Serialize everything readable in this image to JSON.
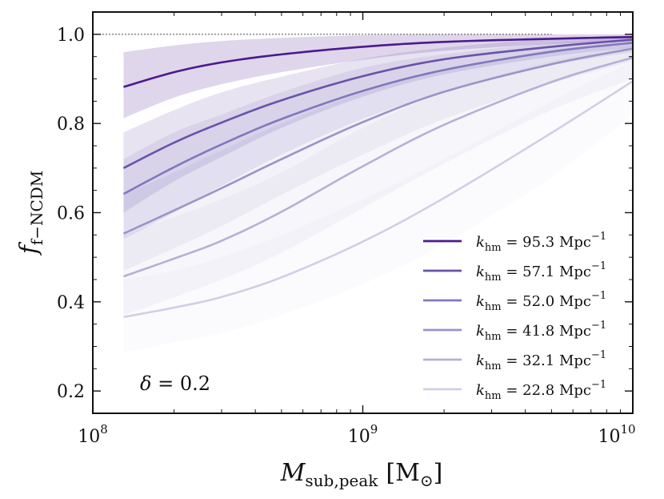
{
  "chart_data": {
    "type": "line",
    "x_scale": "log",
    "xlim": [
      100000000,
      10000000000
    ],
    "ylim": [
      0.15,
      1.05
    ],
    "xlabel": {
      "main": "M",
      "sub": "sub,peak",
      "unit": "[M",
      "unit_sub": "⊙",
      "unit_close": "]"
    },
    "ylabel": {
      "main": "f",
      "sub": "f−NCDM"
    },
    "x_ticks": [
      {
        "value": 100000000,
        "base": "10",
        "exp": "8"
      },
      {
        "value": 1000000000,
        "base": "10",
        "exp": "9"
      },
      {
        "value": 10000000000,
        "base": "10",
        "exp": "10"
      }
    ],
    "y_ticks": [
      {
        "value": 0.2,
        "label": "0.2"
      },
      {
        "value": 0.4,
        "label": "0.4"
      },
      {
        "value": 0.6,
        "label": "0.6"
      },
      {
        "value": 0.8,
        "label": "0.8"
      },
      {
        "value": 1.0,
        "label": "1.0"
      }
    ],
    "reference_line": {
      "y": 1.0,
      "style": "dashed"
    },
    "annotation": {
      "symbol": "δ",
      "text": " = 0.2"
    },
    "legend": {
      "position": "lower-right",
      "prefix": "k",
      "prefix_sub": "hm",
      "eq": " = ",
      "unit": " Mpc",
      "unit_exp": "−1"
    },
    "series": [
      {
        "name": "95.3",
        "color": "#4b1a8f",
        "band_opacity": 0.18,
        "x": [
          130000000,
          200000000,
          300000000,
          500000000,
          1000000000,
          2000000000,
          5000000000,
          10000000000
        ],
        "y": [
          0.882,
          0.915,
          0.937,
          0.955,
          0.972,
          0.983,
          0.99,
          0.994
        ],
        "y_low": [
          0.812,
          0.858,
          0.888,
          0.915,
          0.943,
          0.963,
          0.978,
          0.985
        ],
        "y_high": [
          0.96,
          0.975,
          0.985,
          0.992,
          0.998,
          1.0,
          1.0,
          1.0
        ]
      },
      {
        "name": "57.1",
        "color": "#6a52a9",
        "band_opacity": 0.16,
        "x": [
          130000000,
          200000000,
          300000000,
          500000000,
          1000000000,
          2000000000,
          5000000000,
          10000000000
        ],
        "y": [
          0.7,
          0.757,
          0.802,
          0.852,
          0.906,
          0.944,
          0.972,
          0.988
        ],
        "y_low": [
          0.6,
          0.67,
          0.725,
          0.79,
          0.86,
          0.91,
          0.95,
          0.97
        ],
        "y_high": [
          0.78,
          0.83,
          0.87,
          0.905,
          0.945,
          0.97,
          0.99,
          0.998
        ]
      },
      {
        "name": "52.0",
        "color": "#8377bd",
        "band_opacity": 0.14,
        "x": [
          130000000,
          200000000,
          300000000,
          500000000,
          1000000000,
          2000000000,
          5000000000,
          10000000000
        ],
        "y": [
          0.642,
          0.702,
          0.753,
          0.81,
          0.873,
          0.92,
          0.961,
          0.981
        ],
        "y_low": [
          0.54,
          0.6,
          0.66,
          0.73,
          0.81,
          0.87,
          0.93,
          0.96
        ],
        "y_high": [
          0.72,
          0.78,
          0.82,
          0.87,
          0.925,
          0.955,
          0.98,
          0.992
        ]
      },
      {
        "name": "41.8",
        "color": "#9a94c7",
        "band_opacity": 0.12,
        "x": [
          130000000,
          200000000,
          300000000,
          500000000,
          1000000000,
          2000000000,
          5000000000,
          10000000000
        ],
        "y": [
          0.553,
          0.605,
          0.655,
          0.72,
          0.803,
          0.871,
          0.933,
          0.968
        ],
        "y_low": [
          0.47,
          0.52,
          0.57,
          0.64,
          0.73,
          0.81,
          0.89,
          0.94
        ],
        "y_high": [
          0.64,
          0.69,
          0.74,
          0.8,
          0.87,
          0.92,
          0.965,
          0.985
        ]
      },
      {
        "name": "32.1",
        "color": "#b4b1d6",
        "band_opacity": 0.11,
        "x": [
          130000000,
          200000000,
          300000000,
          500000000,
          1000000000,
          2000000000,
          5000000000,
          10000000000
        ],
        "y": [
          0.457,
          0.497,
          0.537,
          0.602,
          0.704,
          0.797,
          0.893,
          0.948
        ],
        "y_low": [
          0.37,
          0.41,
          0.45,
          0.51,
          0.61,
          0.71,
          0.83,
          0.9
        ],
        "y_high": [
          0.55,
          0.59,
          0.63,
          0.69,
          0.79,
          0.87,
          0.94,
          0.975
        ]
      },
      {
        "name": "22.8",
        "color": "#d1cfe6",
        "band_opacity": 0.09,
        "x": [
          130000000,
          200000000,
          300000000,
          500000000,
          1000000000,
          2000000000,
          5000000000,
          10000000000
        ],
        "y": [
          0.366,
          0.387,
          0.411,
          0.455,
          0.535,
          0.633,
          0.779,
          0.895
        ],
        "y_low": [
          0.285,
          0.31,
          0.33,
          0.37,
          0.44,
          0.53,
          0.68,
          0.82
        ],
        "y_high": [
          0.45,
          0.47,
          0.5,
          0.55,
          0.63,
          0.72,
          0.85,
          0.94
        ]
      }
    ]
  }
}
